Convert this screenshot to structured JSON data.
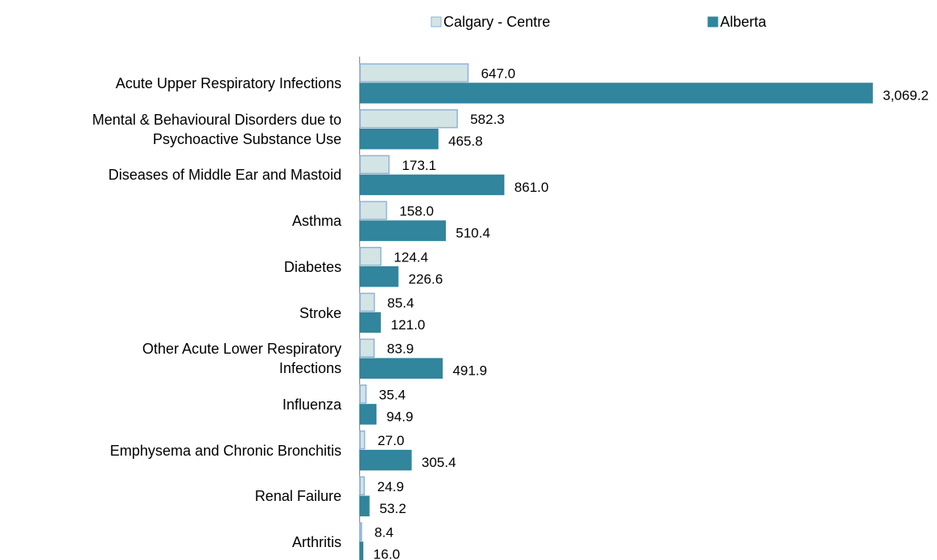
{
  "chart_data": {
    "type": "hbar",
    "categories": [
      "Acute Upper Respiratory Infections",
      "Mental & Behavioural Disorders due to\nPsychoactive Substance Use",
      "Diseases of Middle Ear and Mastoid",
      "Asthma",
      "Diabetes",
      "Stroke",
      "Other Acute Lower Respiratory\nInfections",
      "Influenza",
      "Emphysema and Chronic Bronchitis",
      "Renal Failure",
      "Arthritis"
    ],
    "series": [
      {
        "name": "Calgary - Centre",
        "color": "#d3e4e4",
        "edge": "#8db3e2",
        "values": [
          647.0,
          582.3,
          173.1,
          158.0,
          124.4,
          85.4,
          83.9,
          35.4,
          27.0,
          24.9,
          8.4
        ],
        "value_labels": [
          "647.0",
          "582.3",
          "173.1",
          "158.0",
          "124.4",
          "85.4",
          "83.9",
          "35.4",
          "27.0",
          "24.9",
          "8.4"
        ]
      },
      {
        "name": "Alberta",
        "color": "#31859c",
        "edge": "#31859c",
        "values": [
          3069.2,
          465.8,
          861.0,
          510.4,
          226.6,
          121.0,
          491.9,
          94.9,
          305.4,
          53.2,
          16.0
        ],
        "value_labels": [
          "3,069.2",
          "465.8",
          "861.0",
          "510.4",
          "226.6",
          "121.0",
          "491.9",
          "94.9",
          "305.4",
          "53.2",
          "16.0"
        ]
      }
    ]
  }
}
